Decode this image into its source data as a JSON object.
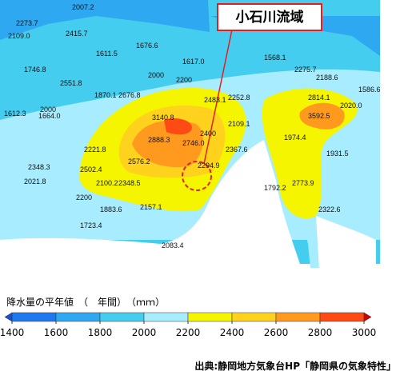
{
  "map": {
    "callout": "小石川流域",
    "stations": [
      "2273.7",
      "2007.2",
      "2109.0",
      "2415.7",
      "1611.5",
      "1676.6",
      "1746.8",
      "2551.8",
      "1870.1",
      "2676.8",
      "2483.1",
      "2252.8",
      "1568.1",
      "1617.0",
      "2275.7",
      "2188.6",
      "1586.6",
      "1612.3",
      "1664.0",
      "3140.8",
      "2888.3",
      "2746.0",
      "2576.2",
      "2109.1",
      "2814.1",
      "3592.5",
      "2020.0",
      "1974.4",
      "2221.8",
      "2502.4",
      "2348.3",
      "2021.8",
      "2100.2",
      "2348.5",
      "2294.9",
      "2367.6",
      "1792.2",
      "2773.9",
      "2322.6",
      "1883.6",
      "2157.1",
      "1723.4",
      "2083.4",
      "1931.5"
    ],
    "contours": [
      "2000",
      "2200",
      "2200",
      "2400",
      "2000"
    ]
  },
  "legend": {
    "title": "降水量の平年値　（　年間）　（ｍｍ）",
    "ticks": [
      1400,
      1600,
      1800,
      2000,
      2200,
      2400,
      2600,
      2800,
      3000
    ],
    "colors": [
      "#1f78f0",
      "#2ea8f0",
      "#45cdf0",
      "#a8ecff",
      "#f5f500",
      "#ffd21e",
      "#ff9a1e",
      "#ff4a14"
    ]
  },
  "source": "出典:静岡地方気象台HP「静岡県の気象特性」"
}
